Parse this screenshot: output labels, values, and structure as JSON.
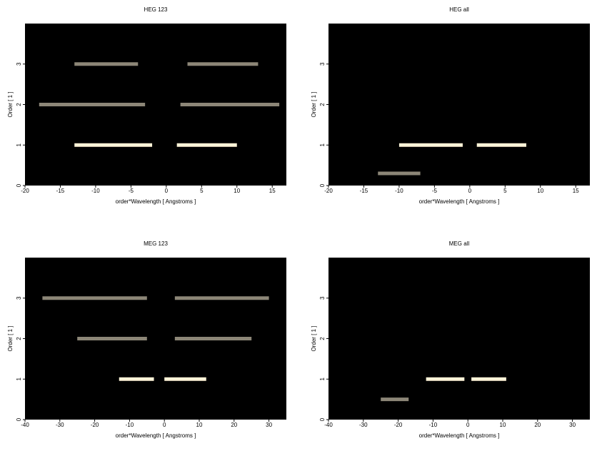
{
  "chart_data": [
    {
      "type": "image",
      "title": "HEG 123",
      "xlabel": "order*Wavelength [ Angstroms ]",
      "ylabel": "Order [ 1 ]",
      "xlim": [
        -20,
        17
      ],
      "xticks": [
        -20,
        -15,
        -10,
        -5,
        0,
        5,
        10,
        15
      ],
      "ylim": [
        0,
        4
      ],
      "yticks": [
        0,
        1,
        2,
        3
      ],
      "color": "#fff4d8",
      "streaks": [
        {
          "y": 1,
          "x": [
            -13,
            -2
          ]
        },
        {
          "y": 1,
          "x": [
            1.5,
            10
          ]
        },
        {
          "y": 2,
          "x": [
            -18,
            -3
          ]
        },
        {
          "y": 2,
          "x": [
            2,
            16
          ]
        },
        {
          "y": 3,
          "x": [
            -13,
            -4
          ]
        },
        {
          "y": 3,
          "x": [
            3,
            13
          ]
        }
      ]
    },
    {
      "type": "image",
      "title": "HEG all",
      "xlabel": "order*Wavelength [ Angstroms ]",
      "ylabel": "Order [ 1 ]",
      "xlim": [
        -20,
        17
      ],
      "xticks": [
        -20,
        -15,
        -10,
        -5,
        0,
        5,
        10,
        15
      ],
      "ylim": [
        0,
        4
      ],
      "yticks": [
        0,
        1,
        2,
        3
      ],
      "color": "#fff4d8",
      "streaks": [
        {
          "y": 1,
          "x": [
            -10,
            -1
          ]
        },
        {
          "y": 1,
          "x": [
            1,
            8
          ]
        },
        {
          "y": 0.3,
          "x": [
            -13,
            -7
          ]
        }
      ]
    },
    {
      "type": "image",
      "title": "MEG 123",
      "xlabel": "order*Wavelength [ Angstroms ]",
      "ylabel": "Order [ 1 ]",
      "xlim": [
        -40,
        35
      ],
      "xticks": [
        -40,
        -30,
        -20,
        -10,
        0,
        10,
        20,
        30
      ],
      "ylim": [
        0,
        4
      ],
      "yticks": [
        0,
        1,
        2,
        3
      ],
      "color": "#fff4d8",
      "streaks": [
        {
          "y": 1,
          "x": [
            -13,
            -3
          ]
        },
        {
          "y": 1,
          "x": [
            0,
            12
          ]
        },
        {
          "y": 2,
          "x": [
            -25,
            -5
          ]
        },
        {
          "y": 2,
          "x": [
            3,
            25
          ]
        },
        {
          "y": 3,
          "x": [
            -35,
            -5
          ]
        },
        {
          "y": 3,
          "x": [
            3,
            30
          ]
        }
      ]
    },
    {
      "type": "image",
      "title": "MEG all",
      "xlabel": "order*Wavelength [ Angstroms ]",
      "ylabel": "Order [ 1 ]",
      "xlim": [
        -40,
        35
      ],
      "xticks": [
        -40,
        -30,
        -20,
        -10,
        0,
        10,
        20,
        30
      ],
      "ylim": [
        0,
        4
      ],
      "yticks": [
        0,
        1,
        2,
        3
      ],
      "color": "#fff4d8",
      "streaks": [
        {
          "y": 1,
          "x": [
            -12,
            -1
          ]
        },
        {
          "y": 1,
          "x": [
            1,
            11
          ]
        },
        {
          "y": 0.5,
          "x": [
            -25,
            -17
          ]
        }
      ]
    }
  ]
}
